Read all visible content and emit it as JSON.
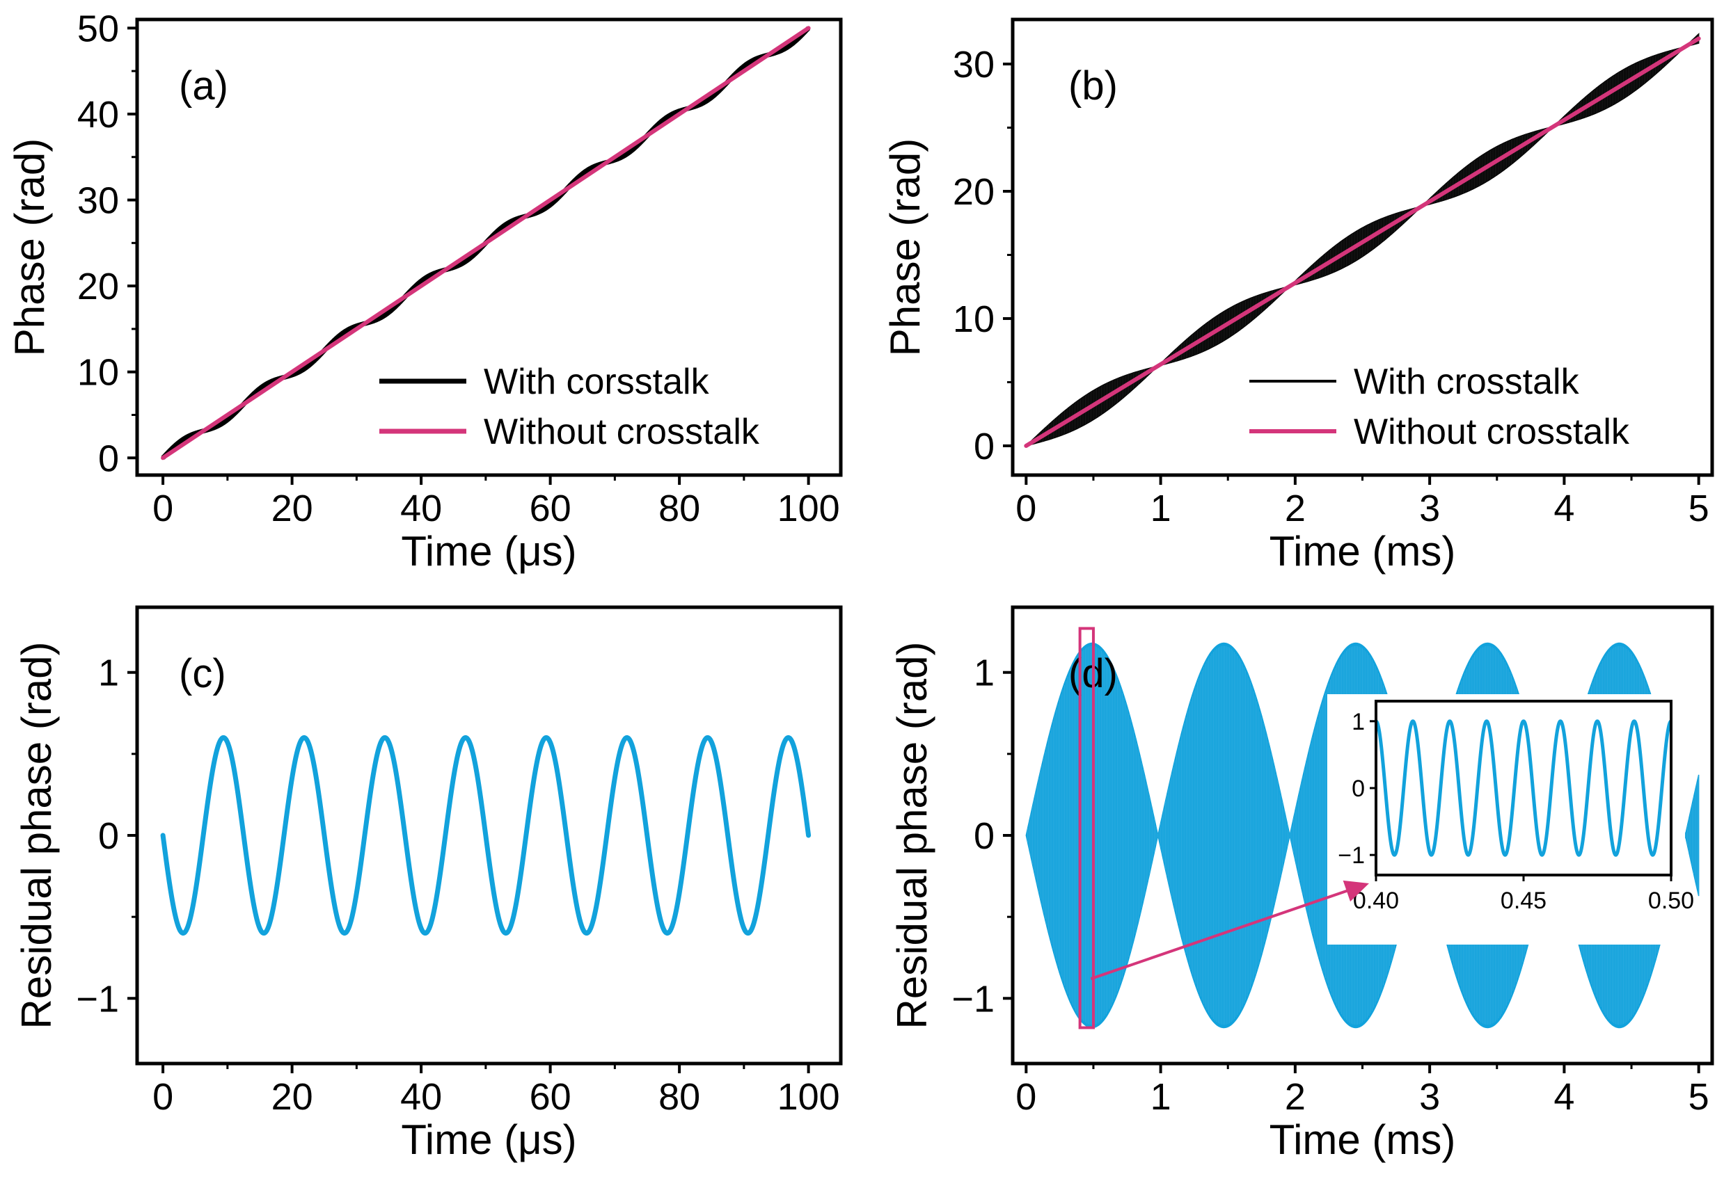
{
  "colors": {
    "axis": "#000000",
    "with_crosstalk": "#000000",
    "without_crosstalk": "#d4357a",
    "residual": "#12a2dc",
    "highlight": "#d4357a"
  },
  "chart_data": [
    {
      "panel": "a",
      "panel_label": "(a)",
      "type": "line",
      "xlabel": "Time (μs)",
      "ylabel": "Phase (rad)",
      "xlim": [
        -4,
        105
      ],
      "ylim": [
        -2,
        51
      ],
      "xticks": [
        0,
        20,
        40,
        60,
        80,
        100
      ],
      "xtick_labels": [
        "0",
        "20",
        "40",
        "60",
        "80",
        "100"
      ],
      "yticks": [
        0,
        10,
        20,
        30,
        40,
        50
      ],
      "ytick_labels": [
        "0",
        "10",
        "20",
        "30",
        "40",
        "50"
      ],
      "legend_position": "lower-right",
      "series": [
        {
          "name": "With corsstalk",
          "color_key": "with_crosstalk",
          "model": "linear_plus_sine",
          "slope": 0.5,
          "amplitude": 0.6,
          "period": 12.5,
          "x_range": [
            0,
            100
          ],
          "samples": 900,
          "line": "thick"
        },
        {
          "name": "Without crosstalk",
          "color_key": "without_crosstalk",
          "model": "linear",
          "slope": 0.5,
          "x_range": [
            0,
            100
          ],
          "samples": 2,
          "line": "thick"
        }
      ]
    },
    {
      "panel": "b",
      "panel_label": "(b)",
      "type": "line",
      "xlabel": "Time (ms)",
      "ylabel": "Phase (rad)",
      "xlim": [
        -0.1,
        5.1
      ],
      "ylim": [
        -2.3,
        33.5
      ],
      "xticks": [
        0,
        1,
        2,
        3,
        4,
        5
      ],
      "xtick_labels": [
        "0",
        "1",
        "2",
        "3",
        "4",
        "5"
      ],
      "yticks": [
        0,
        10,
        20,
        30
      ],
      "ytick_labels": [
        "0",
        "10",
        "20",
        "30"
      ],
      "legend_position": "lower-right",
      "series": [
        {
          "name": "With crosstalk",
          "color_key": "with_crosstalk",
          "model": "linear_with_beating_envelope",
          "slope": 6.4,
          "amplitude": 1.15,
          "envelope_period": 1.96,
          "x_range": [
            0,
            5
          ],
          "line": "filled-band"
        },
        {
          "name": "Without crosstalk",
          "color_key": "without_crosstalk",
          "model": "linear",
          "slope": 6.4,
          "x_range": [
            0,
            5
          ],
          "samples": 2,
          "line": "thick"
        }
      ]
    },
    {
      "panel": "c",
      "panel_label": "(c)",
      "type": "line",
      "xlabel": "Time (μs)",
      "ylabel": "Residual phase (rad)",
      "xlim": [
        -4,
        105
      ],
      "ylim": [
        -1.4,
        1.4
      ],
      "xticks": [
        0,
        20,
        40,
        60,
        80,
        100
      ],
      "xtick_labels": [
        "0",
        "20",
        "40",
        "60",
        "80",
        "100"
      ],
      "yticks": [
        -1,
        0,
        1
      ],
      "ytick_labels": [
        "−1",
        "0",
        "1"
      ],
      "series": [
        {
          "name": "Residual phase",
          "color_key": "residual",
          "model": "neg_sine",
          "amplitude": 0.6,
          "period": 12.5,
          "x_range": [
            0,
            100
          ],
          "samples": 900,
          "line": "thick"
        }
      ]
    },
    {
      "panel": "d",
      "panel_label": "(d)",
      "type": "line",
      "xlabel": "Time (ms)",
      "ylabel": "Residual phase (rad)",
      "xlim": [
        -0.1,
        5.1
      ],
      "ylim": [
        -1.4,
        1.4
      ],
      "xticks": [
        0,
        1,
        2,
        3,
        4,
        5
      ],
      "xtick_labels": [
        "0",
        "1",
        "2",
        "3",
        "4",
        "5"
      ],
      "yticks": [
        -1,
        0,
        1
      ],
      "ytick_labels": [
        "−1",
        "0",
        "1"
      ],
      "series": [
        {
          "name": "Residual phase",
          "color_key": "residual",
          "model": "beating_envelope_band",
          "amplitude": 1.18,
          "envelope_period": 1.96,
          "x_range": [
            0,
            5
          ],
          "line": "filled-band"
        }
      ],
      "highlight_region": {
        "x_range": [
          0.4,
          0.5
        ],
        "y_range": [
          -1.18,
          1.27
        ]
      },
      "inset": {
        "xlim": [
          0.4,
          0.5
        ],
        "ylim": [
          -1.3,
          1.3
        ],
        "xticks": [
          0.4,
          0.45,
          0.5
        ],
        "xtick_labels": [
          "0.40",
          "0.45",
          "0.50"
        ],
        "yticks": [
          -1,
          0,
          1
        ],
        "ytick_labels": [
          "−1",
          "0",
          "1"
        ],
        "series": {
          "model": "cosine",
          "amplitude": 1.0,
          "period": 0.0125,
          "samples": 900
        }
      }
    }
  ]
}
